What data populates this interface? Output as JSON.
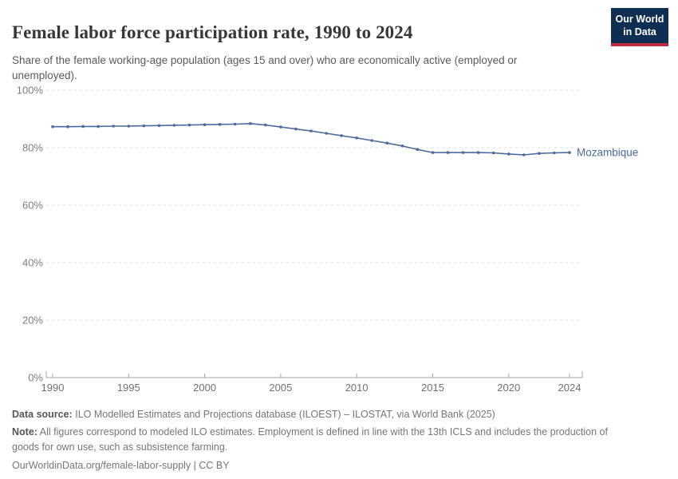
{
  "header": {
    "title": "Female labor force participation rate, 1990 to 2024",
    "subtitle": "Share of the female working-age population (ages 15 and over) who are economically active (employed or unemployed).",
    "logo": {
      "line1": "Our World",
      "line2": "in Data"
    }
  },
  "chart_data": {
    "type": "line",
    "title": "Female labor force participation rate, 1990 to 2024",
    "xlabel": "",
    "ylabel": "",
    "xlim": [
      1990,
      2024
    ],
    "ylim": [
      0,
      100
    ],
    "grid": true,
    "legend_position": "end-of-line-label",
    "x_ticks": [
      1990,
      1995,
      2000,
      2005,
      2010,
      2015,
      2020,
      2024
    ],
    "y_ticks": [
      0,
      20,
      40,
      60,
      80,
      100
    ],
    "y_tick_suffix": "%",
    "x": [
      1990,
      1991,
      1992,
      1993,
      1994,
      1995,
      1996,
      1997,
      1998,
      1999,
      2000,
      2001,
      2002,
      2003,
      2004,
      2005,
      2006,
      2007,
      2008,
      2009,
      2010,
      2011,
      2012,
      2013,
      2014,
      2015,
      2016,
      2017,
      2018,
      2019,
      2020,
      2021,
      2022,
      2023,
      2024
    ],
    "series": [
      {
        "name": "Mozambique",
        "color": "#4c6a9c",
        "values": [
          87.3,
          87.3,
          87.4,
          87.4,
          87.5,
          87.5,
          87.6,
          87.7,
          87.8,
          87.9,
          88.0,
          88.1,
          88.2,
          88.4,
          87.9,
          87.2,
          86.5,
          85.8,
          85.0,
          84.2,
          83.4,
          82.5,
          81.6,
          80.6,
          79.4,
          78.3,
          78.3,
          78.3,
          78.3,
          78.2,
          77.8,
          77.5,
          78.0,
          78.2,
          78.3
        ]
      }
    ]
  },
  "footer": {
    "data_source_label": "Data source:",
    "data_source_text": "ILO Modelled Estimates and Projections database (ILOEST) – ILOSTAT, via World Bank (2025)",
    "note_label": "Note:",
    "note_text": "All figures correspond to modeled ILO estimates. Employment is defined in line with the 13th ICLS and includes the production of goods for own use, such as subsistence farming.",
    "url": "OurWorldinData.org/female-labor-supply",
    "divider": "|",
    "license": "CC BY"
  },
  "colors": {
    "line": "#4c6a9c",
    "title": "#383636",
    "subtitle": "#5a5a5a",
    "axis_text": "#7c7c7c",
    "grid": "#dcdcdc",
    "logo_bg": "#102d52",
    "logo_stripe": "#bb2a3d"
  }
}
